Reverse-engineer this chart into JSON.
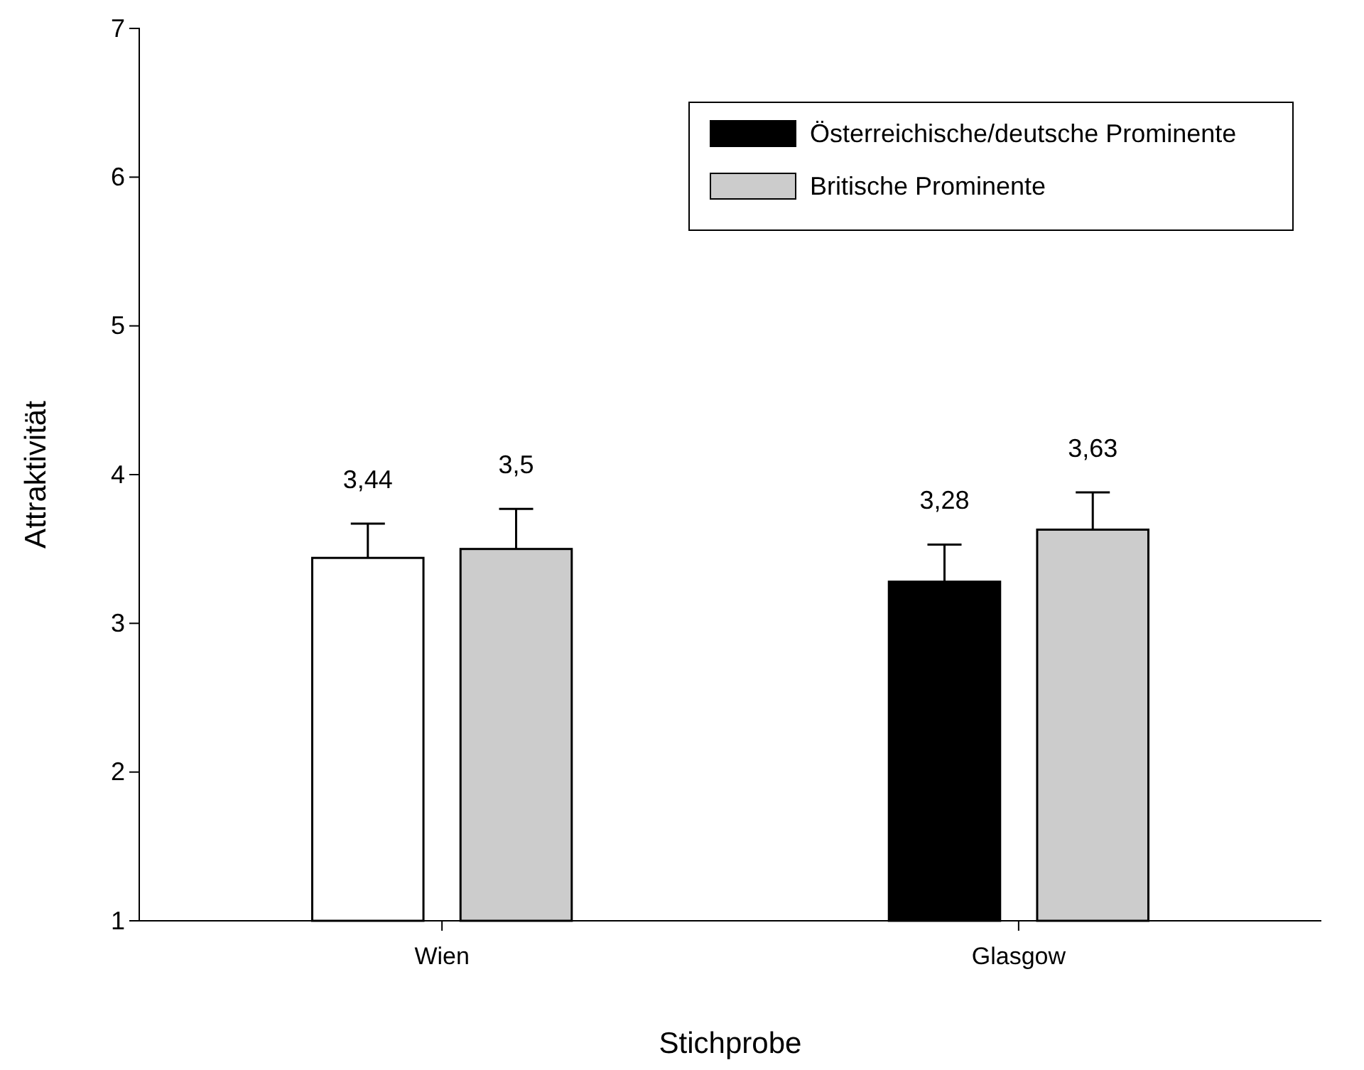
{
  "chart_data": {
    "type": "bar",
    "xlabel": "Stichprobe",
    "ylabel": "Attraktivität",
    "categories": [
      "Wien",
      "Glasgow"
    ],
    "series": [
      {
        "name": "Österreichische/deutsche Prominente",
        "color": "#000000",
        "colors": [
          "#ffffff",
          "#000000"
        ],
        "values": [
          3.44,
          3.28
        ],
        "value_labels": [
          "3,44",
          "3,28"
        ],
        "errors": [
          [
            3.44,
            3.67
          ],
          [
            3.28,
            3.53
          ]
        ]
      },
      {
        "name": "Britische Prominente",
        "color": "#cccccc",
        "values": [
          3.5,
          3.63
        ],
        "value_labels": [
          "3,5",
          "3,63"
        ],
        "errors": [
          [
            3.5,
            3.77
          ],
          [
            3.63,
            3.88
          ]
        ]
      }
    ],
    "ylim": [
      1,
      7
    ],
    "yticks": [
      1,
      2,
      3,
      4,
      5,
      6,
      7
    ],
    "legend": "top right"
  }
}
